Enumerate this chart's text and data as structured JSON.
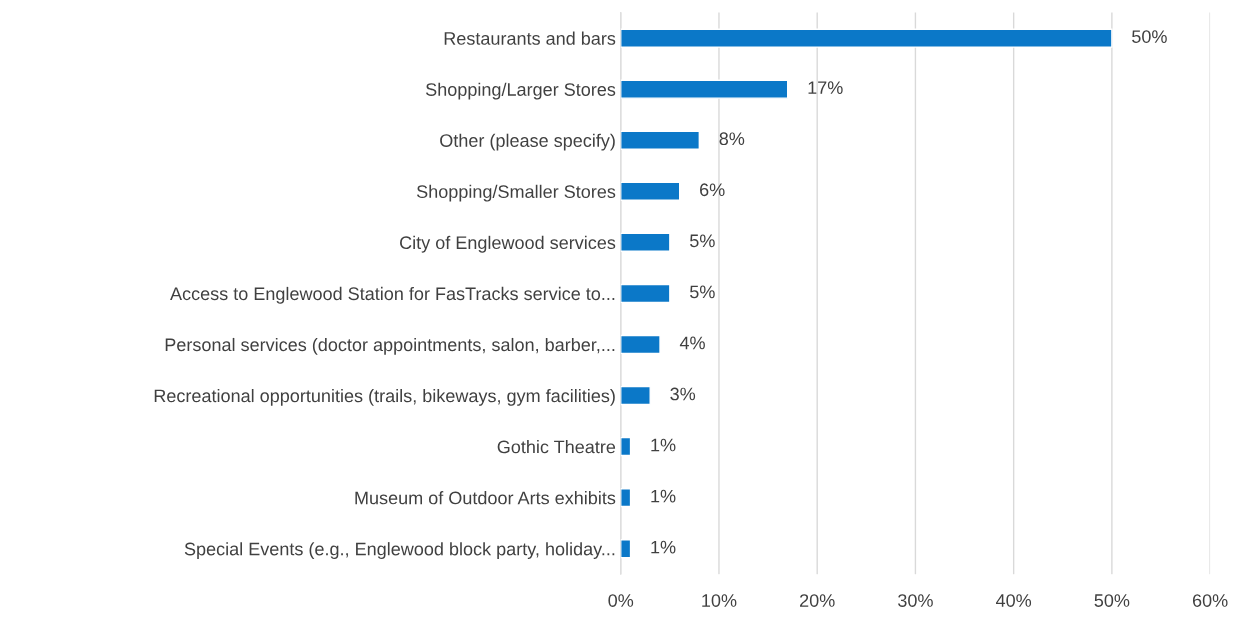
{
  "chart_data": {
    "type": "bar",
    "orientation": "horizontal",
    "categories": [
      "Restaurants and bars",
      "Shopping/Larger Stores",
      "Other (please specify)",
      "Shopping/Smaller Stores",
      "City of Englewood services",
      "Access to Englewood Station for FasTracks service to...",
      "Personal services (doctor appointments, salon, barber,...",
      "Recreational opportunities (trails, bikeways, gym facilities)",
      "Gothic Theatre",
      "Museum of Outdoor Arts exhibits",
      "Special Events (e.g., Englewood block party, holiday..."
    ],
    "values": [
      50,
      17,
      8,
      6,
      5,
      5,
      4,
      3,
      1,
      1,
      1
    ],
    "value_labels": [
      "50%",
      "17%",
      "8%",
      "6%",
      "5%",
      "5%",
      "4%",
      "3%",
      "1%",
      "1%",
      "1%"
    ],
    "color": "#0b78c8",
    "xlim": [
      0,
      60
    ],
    "xticks": [
      {
        "value": 0,
        "label": "0%"
      },
      {
        "value": 10,
        "label": "10%"
      },
      {
        "value": 20,
        "label": "20%"
      },
      {
        "value": 30,
        "label": "30%"
      },
      {
        "value": 40,
        "label": "40%"
      },
      {
        "value": 50,
        "label": "50%"
      },
      {
        "value": 60,
        "label": "60%"
      }
    ],
    "grid": "x"
  }
}
